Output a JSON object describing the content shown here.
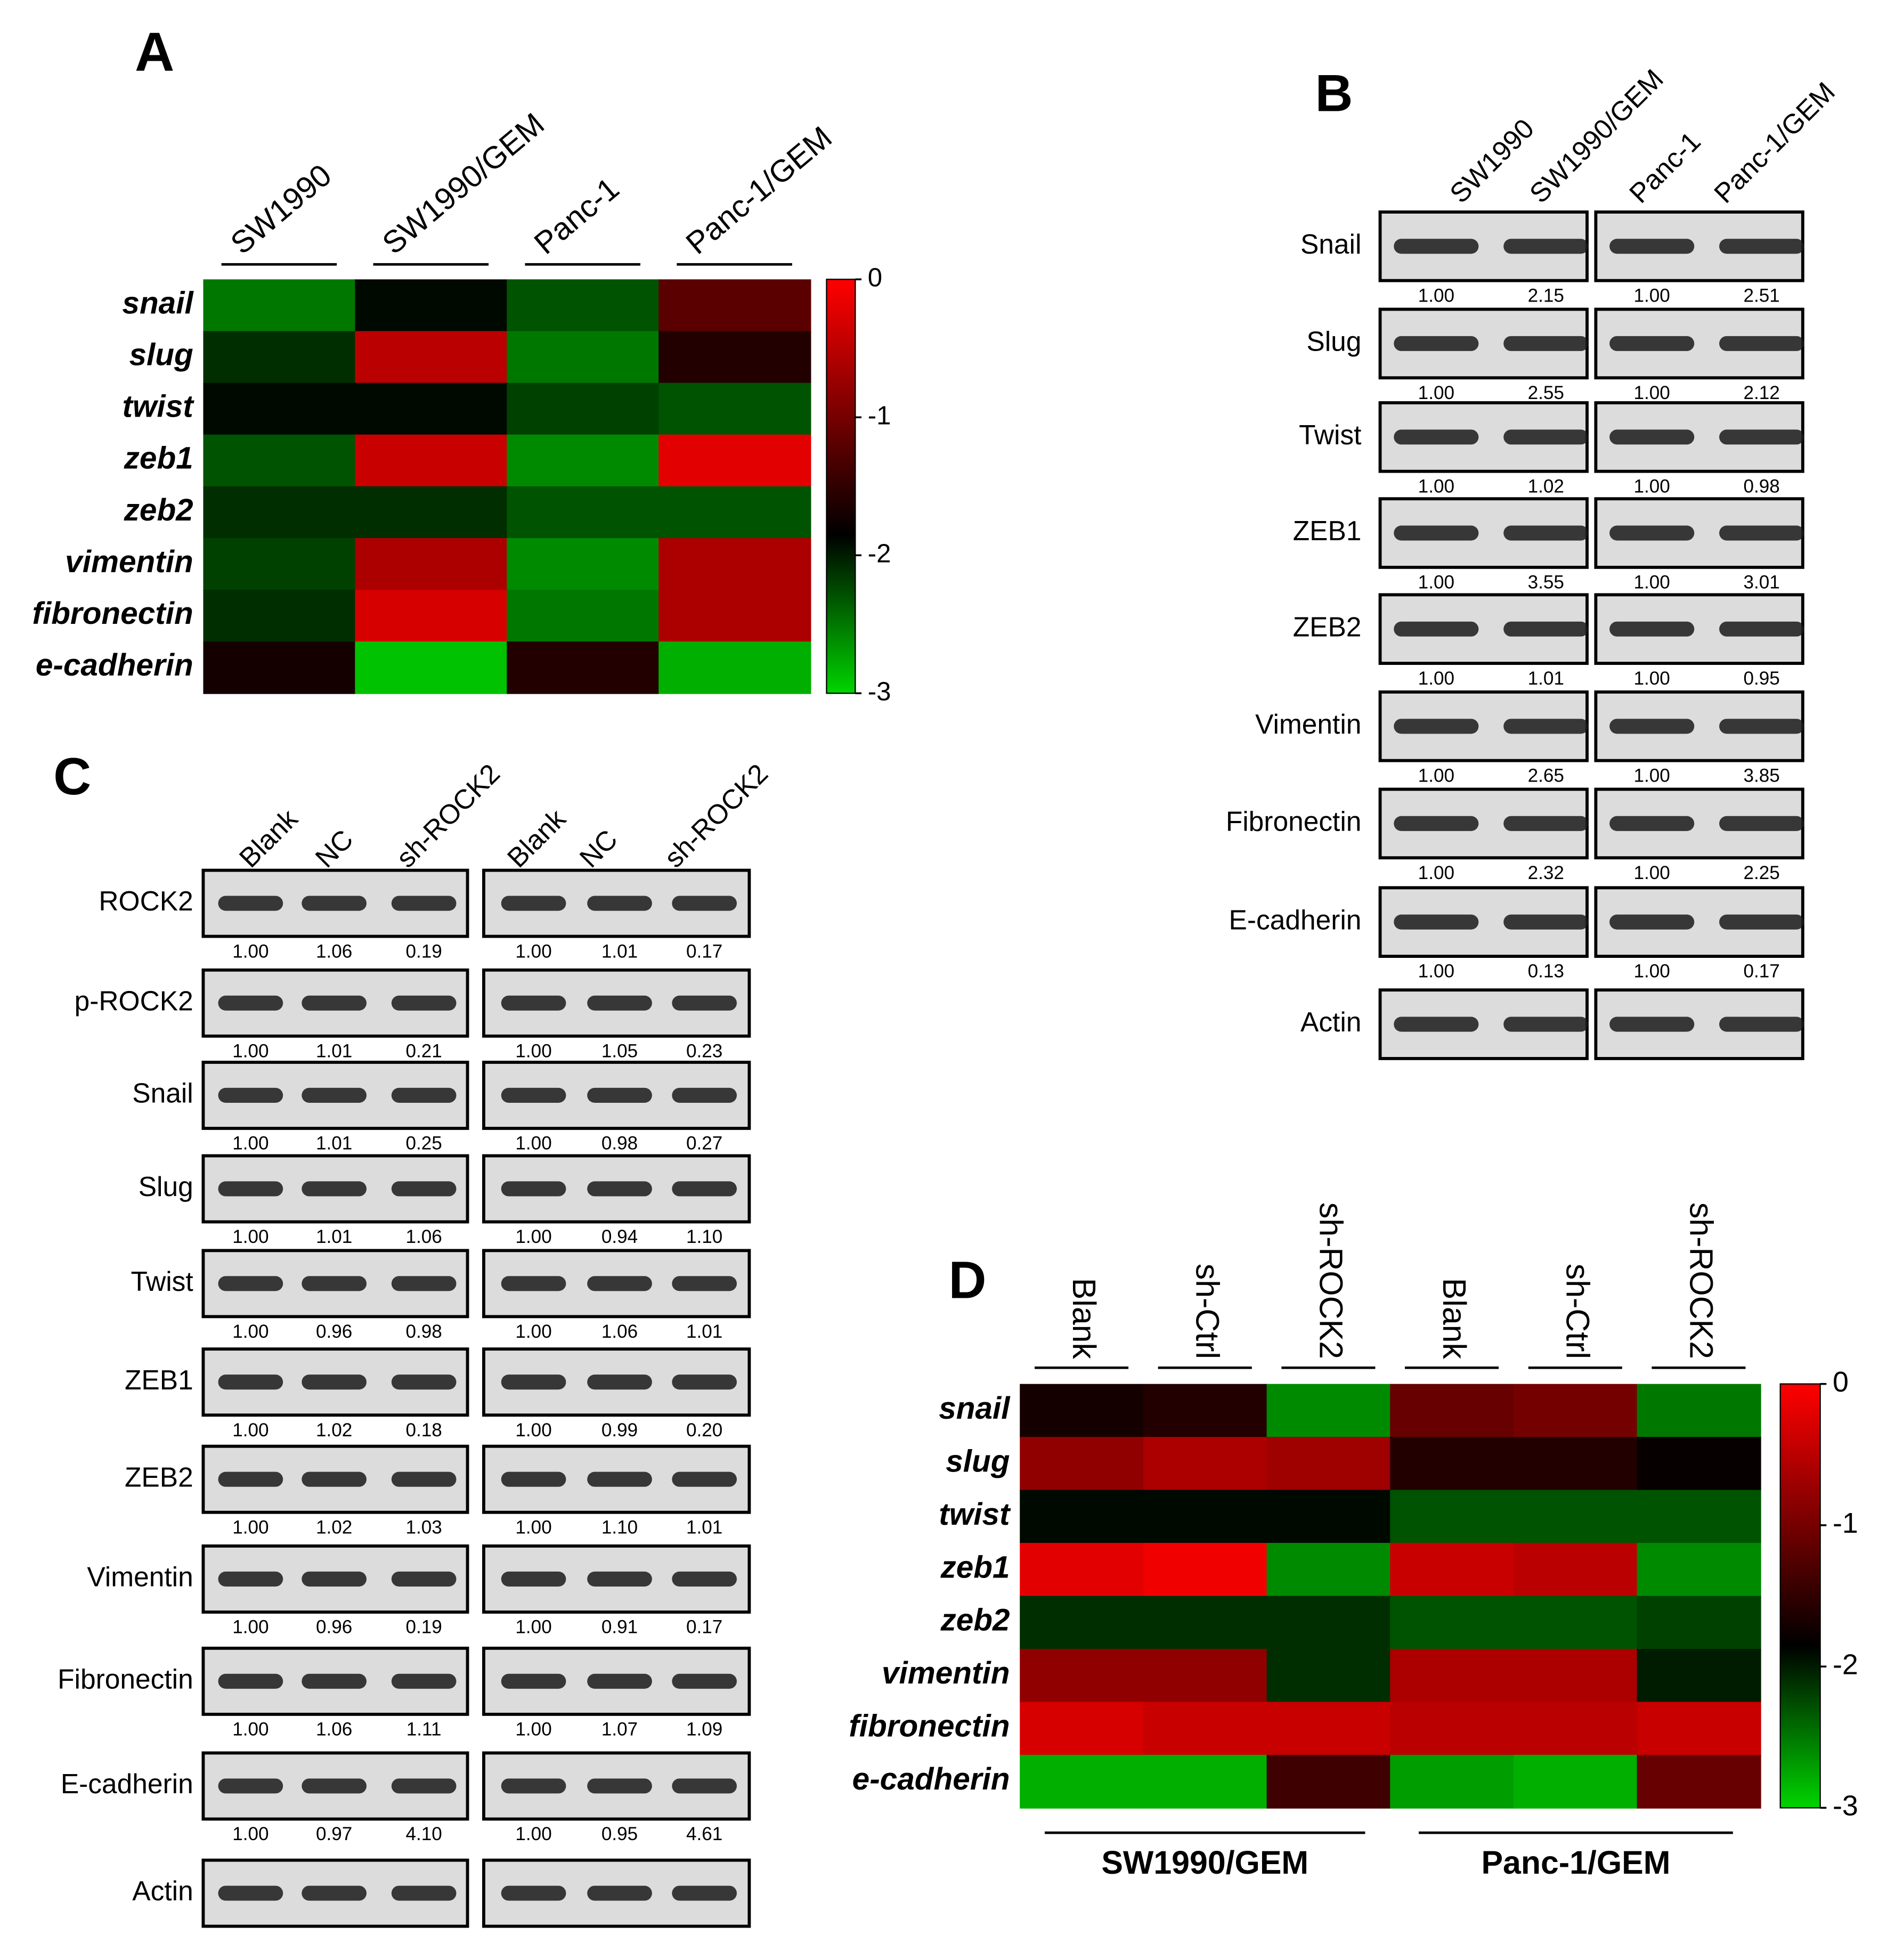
{
  "panel_a": {
    "label": "A",
    "columns": [
      "SW1990",
      "SW1990/GEM",
      "Panc-1",
      "Panc-1/GEM"
    ],
    "rows": [
      "snail",
      "slug",
      "twist",
      "zeb1",
      "zeb2",
      "vimentin",
      "fibronectin",
      "e-cadherin"
    ],
    "values": [
      [
        -2.5,
        -1.9,
        -2.3,
        -1.2
      ],
      [
        -2.1,
        -0.5,
        -2.5,
        -1.6
      ],
      [
        -1.9,
        -1.9,
        -2.2,
        -2.3
      ],
      [
        -2.3,
        -0.4,
        -2.6,
        -0.2
      ],
      [
        -2.1,
        -2.1,
        -2.3,
        -2.3
      ],
      [
        -2.2,
        -0.6,
        -2.6,
        -0.6
      ],
      [
        -2.1,
        -0.3,
        -2.5,
        -0.6
      ],
      [
        -1.7,
        -2.9,
        -1.6,
        -2.8
      ]
    ],
    "clim": [
      -3,
      0
    ],
    "colorbar_ticks": [
      0,
      -1,
      -2,
      -3
    ],
    "colorscale": [
      {
        "value": -3,
        "color": "#00d400"
      },
      {
        "value": -1.85,
        "color": "#000000"
      },
      {
        "value": 0,
        "color": "#ff0000"
      }
    ]
  },
  "panel_b": {
    "label": "B",
    "lanes": [
      "SW1990",
      "SW1990/GEM",
      "Panc-1",
      "Panc-1/GEM"
    ],
    "rows": [
      {
        "name": "Snail",
        "quant": [
          "1.00",
          "2.15",
          "1.00",
          "2.51"
        ]
      },
      {
        "name": "Slug",
        "quant": [
          "1.00",
          "2.55",
          "1.00",
          "2.12"
        ]
      },
      {
        "name": "Twist",
        "quant": [
          "1.00",
          "1.02",
          "1.00",
          "0.98"
        ]
      },
      {
        "name": "ZEB1",
        "quant": [
          "1.00",
          "3.55",
          "1.00",
          "3.01"
        ]
      },
      {
        "name": "ZEB2",
        "quant": [
          "1.00",
          "1.01",
          "1.00",
          "0.95"
        ]
      },
      {
        "name": "Vimentin",
        "quant": [
          "1.00",
          "2.65",
          "1.00",
          "3.85"
        ]
      },
      {
        "name": "Fibronectin",
        "quant": [
          "1.00",
          "2.32",
          "1.00",
          "2.25"
        ]
      },
      {
        "name": "E-cadherin",
        "quant": [
          "1.00",
          "0.13",
          "1.00",
          "0.17"
        ]
      },
      {
        "name": "Actin"
      }
    ]
  },
  "panel_c": {
    "label": "C",
    "lanes": [
      "Blank",
      "NC",
      "sh-ROCK2",
      "Blank",
      "NC",
      "sh-ROCK2"
    ],
    "rows": [
      {
        "name": "ROCK2",
        "quant": [
          "1.00",
          "1.06",
          "0.19",
          "1.00",
          "1.01",
          "0.17"
        ]
      },
      {
        "name": "p-ROCK2",
        "quant": [
          "1.00",
          "1.01",
          "0.21",
          "1.00",
          "1.05",
          "0.23"
        ]
      },
      {
        "name": "Snail",
        "quant": [
          "1.00",
          "1.01",
          "0.25",
          "1.00",
          "0.98",
          "0.27"
        ]
      },
      {
        "name": "Slug",
        "quant": [
          "1.00",
          "1.01",
          "1.06",
          "1.00",
          "0.94",
          "1.10"
        ]
      },
      {
        "name": "Twist",
        "quant": [
          "1.00",
          "0.96",
          "0.98",
          "1.00",
          "1.06",
          "1.01"
        ]
      },
      {
        "name": "ZEB1",
        "quant": [
          "1.00",
          "1.02",
          "0.18",
          "1.00",
          "0.99",
          "0.20"
        ]
      },
      {
        "name": "ZEB2",
        "quant": [
          "1.00",
          "1.02",
          "1.03",
          "1.00",
          "1.10",
          "1.01"
        ]
      },
      {
        "name": "Vimentin",
        "quant": [
          "1.00",
          "0.96",
          "0.19",
          "1.00",
          "0.91",
          "0.17"
        ]
      },
      {
        "name": "Fibronectin",
        "quant": [
          "1.00",
          "1.06",
          "1.11",
          "1.00",
          "1.07",
          "1.09"
        ]
      },
      {
        "name": "E-cadherin",
        "quant": [
          "1.00",
          "0.97",
          "4.10",
          "1.00",
          "0.95",
          "4.61"
        ]
      },
      {
        "name": "Actin"
      }
    ]
  },
  "panel_d": {
    "label": "D",
    "columns": [
      "Blank",
      "sh-Ctrl",
      "sh-ROCK2",
      "Blank",
      "sh-Ctrl",
      "sh-ROCK2"
    ],
    "groups": [
      "SW1990/GEM",
      "Panc-1/GEM"
    ],
    "rows": [
      "snail",
      "slug",
      "twist",
      "zeb1",
      "zeb2",
      "vimentin",
      "fibronectin",
      "e-cadherin"
    ],
    "values": [
      [
        -1.7,
        -1.6,
        -2.6,
        -1.1,
        -1.0,
        -2.5
      ],
      [
        -0.8,
        -0.6,
        -0.7,
        -1.6,
        -1.6,
        -1.8
      ],
      [
        -1.9,
        -1.9,
        -1.9,
        -2.3,
        -2.3,
        -2.3
      ],
      [
        -0.2,
        -0.1,
        -2.6,
        -0.4,
        -0.5,
        -2.6
      ],
      [
        -2.1,
        -2.1,
        -2.1,
        -2.3,
        -2.3,
        -2.2
      ],
      [
        -0.8,
        -0.8,
        -2.1,
        -0.6,
        -0.6,
        -2.0
      ],
      [
        -0.3,
        -0.4,
        -0.4,
        -0.5,
        -0.5,
        -0.4
      ],
      [
        -2.8,
        -2.8,
        -1.4,
        -2.7,
        -2.8,
        -1.1
      ]
    ],
    "clim": [
      -3,
      0
    ],
    "colorbar_ticks": [
      0,
      -1,
      -2,
      -3
    ],
    "colorscale": [
      {
        "value": -3,
        "color": "#00d400"
      },
      {
        "value": -1.85,
        "color": "#000000"
      },
      {
        "value": 0,
        "color": "#ff0000"
      }
    ]
  }
}
